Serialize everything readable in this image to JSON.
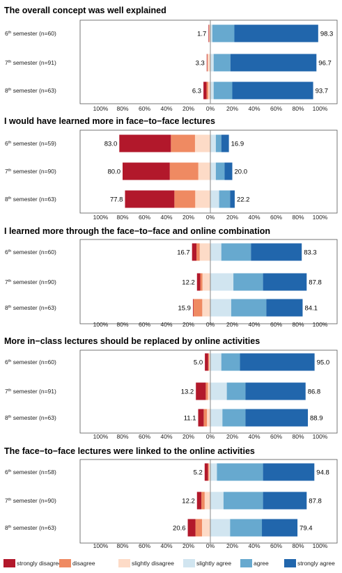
{
  "colors": {
    "strongly_disagree": "#b2182b",
    "disagree": "#ef8a62",
    "slightly_disagree": "#fddbc7",
    "slightly_agree": "#d1e5f0",
    "agree": "#67a9cf",
    "strongly_agree": "#2166ac"
  },
  "legend": [
    {
      "key": "strongly_disagree",
      "label": "strongly disagree"
    },
    {
      "key": "disagree",
      "label": "disagree"
    },
    {
      "key": "slightly_disagree",
      "label": "slightly disagree"
    },
    {
      "key": "slightly_agree",
      "label": "slightly agree"
    },
    {
      "key": "agree",
      "label": "agree"
    },
    {
      "key": "strongly_agree",
      "label": "strongly agree"
    }
  ],
  "chart_data": [
    {
      "type": "bar",
      "orientation": "diverging-stacked-horizontal",
      "title": "The overall concept was well explained",
      "x_ticks": [
        "100%",
        "80%",
        "60%",
        "40%",
        "20%",
        "0%",
        "20%",
        "40%",
        "60%",
        "80%",
        "100%"
      ],
      "xlim": [
        -100,
        100
      ],
      "rows": [
        {
          "sem": "6",
          "n": "(n=60)",
          "neg_label": "1.7",
          "pos_label": "98.3",
          "neg": [
            0.4,
            0.4,
            0.9
          ],
          "pos": [
            1.8,
            20.1,
            76.4
          ]
        },
        {
          "sem": "7",
          "n": "(n=91)",
          "neg_label": "3.3",
          "pos_label": "96.7",
          "neg": [
            0.4,
            0.4,
            2.5
          ],
          "pos": [
            3.0,
            15.3,
            78.4
          ]
        },
        {
          "sem": "8",
          "n": "(n=63)",
          "neg_label": "6.3",
          "pos_label": "93.7",
          "neg": [
            2.8,
            1.5,
            2.0
          ],
          "pos": [
            3.0,
            17.0,
            73.7
          ]
        }
      ]
    },
    {
      "type": "bar",
      "orientation": "diverging-stacked-horizontal",
      "title": "I would have learned more in face−to−face lectures",
      "x_ticks": [
        "100%",
        "80%",
        "60%",
        "40%",
        "20%",
        "0%",
        "20%",
        "40%",
        "60%",
        "80%",
        "100%"
      ],
      "xlim": [
        -100,
        100
      ],
      "rows": [
        {
          "sem": "6",
          "n": "(n=59)",
          "neg_label": "83.0",
          "pos_label": "16.9",
          "neg": [
            47.0,
            22.0,
            14.0
          ],
          "pos": [
            5.0,
            5.0,
            6.9
          ]
        },
        {
          "sem": "7",
          "n": "(n=90)",
          "neg_label": "80.0",
          "pos_label": "20.0",
          "neg": [
            43.0,
            26.0,
            11.0
          ],
          "pos": [
            5.0,
            8.0,
            7.0
          ]
        },
        {
          "sem": "8",
          "n": "(n=63)",
          "neg_label": "77.8",
          "pos_label": "22.2",
          "neg": [
            45.0,
            19.0,
            13.8
          ],
          "pos": [
            8.0,
            10.0,
            4.2
          ]
        }
      ]
    },
    {
      "type": "bar",
      "orientation": "diverging-stacked-horizontal",
      "title": "I learned more through the face−to−face and online combination",
      "x_ticks": [
        "100%",
        "80%",
        "60%",
        "40%",
        "20%",
        "0%",
        "20%",
        "40%",
        "60%",
        "80%",
        "100%"
      ],
      "xlim": [
        -100,
        100
      ],
      "rows": [
        {
          "sem": "6",
          "n": "(n=60)",
          "neg_label": "16.7",
          "pos_label": "83.3",
          "neg": [
            4.0,
            3.0,
            9.7
          ],
          "pos": [
            10.0,
            27.0,
            46.3
          ]
        },
        {
          "sem": "7",
          "n": "(n=90)",
          "neg_label": "12.2",
          "pos_label": "87.8",
          "neg": [
            3.0,
            2.0,
            7.2
          ],
          "pos": [
            21.0,
            27.0,
            39.8
          ]
        },
        {
          "sem": "8",
          "n": "(n=63)",
          "neg_label": "15.9",
          "pos_label": "84.1",
          "neg": [
            0.5,
            8.0,
            7.4
          ],
          "pos": [
            19.0,
            32.0,
            33.1
          ]
        }
      ]
    },
    {
      "type": "bar",
      "orientation": "diverging-stacked-horizontal",
      "title": "More in−class lectures should be replaced by online activities",
      "x_ticks": [
        "100%",
        "80%",
        "60%",
        "40%",
        "20%",
        "0%",
        "20%",
        "40%",
        "60%",
        "80%",
        "100%"
      ],
      "xlim": [
        -100,
        100
      ],
      "rows": [
        {
          "sem": "6",
          "n": "(n=60)",
          "neg_label": "5.0",
          "pos_label": "95.0",
          "neg": [
            3.0,
            0.8,
            1.2
          ],
          "pos": [
            10.0,
            17.0,
            68.0
          ]
        },
        {
          "sem": "7",
          "n": "(n=91)",
          "neg_label": "13.2",
          "pos_label": "86.8",
          "neg": [
            9.0,
            2.0,
            2.2
          ],
          "pos": [
            15.0,
            17.0,
            54.8
          ]
        },
        {
          "sem": "8",
          "n": "(n=63)",
          "neg_label": "11.1",
          "pos_label": "88.9",
          "neg": [
            5.0,
            3.0,
            3.1
          ],
          "pos": [
            11.0,
            21.0,
            56.9
          ]
        }
      ]
    },
    {
      "type": "bar",
      "orientation": "diverging-stacked-horizontal",
      "title": "The face−to−face lectures were linked to the online activities",
      "x_ticks": [
        "100%",
        "80%",
        "60%",
        "40%",
        "20%",
        "0%",
        "20%",
        "40%",
        "60%",
        "80%",
        "100%"
      ],
      "xlim": [
        -100,
        100
      ],
      "rows": [
        {
          "sem": "6",
          "n": "(n=58)",
          "neg_label": "5.2",
          "pos_label": "94.8",
          "neg": [
            3.0,
            0.8,
            1.4
          ],
          "pos": [
            6.0,
            42.0,
            46.8
          ]
        },
        {
          "sem": "7",
          "n": "(n=90)",
          "neg_label": "12.2",
          "pos_label": "87.8",
          "neg": [
            4.0,
            3.0,
            5.2
          ],
          "pos": [
            12.0,
            36.0,
            39.8
          ]
        },
        {
          "sem": "8",
          "n": "(n=63)",
          "neg_label": "20.6",
          "pos_label": "79.4",
          "neg": [
            7.0,
            6.0,
            7.6
          ],
          "pos": [
            18.0,
            29.0,
            32.4
          ]
        }
      ]
    }
  ]
}
